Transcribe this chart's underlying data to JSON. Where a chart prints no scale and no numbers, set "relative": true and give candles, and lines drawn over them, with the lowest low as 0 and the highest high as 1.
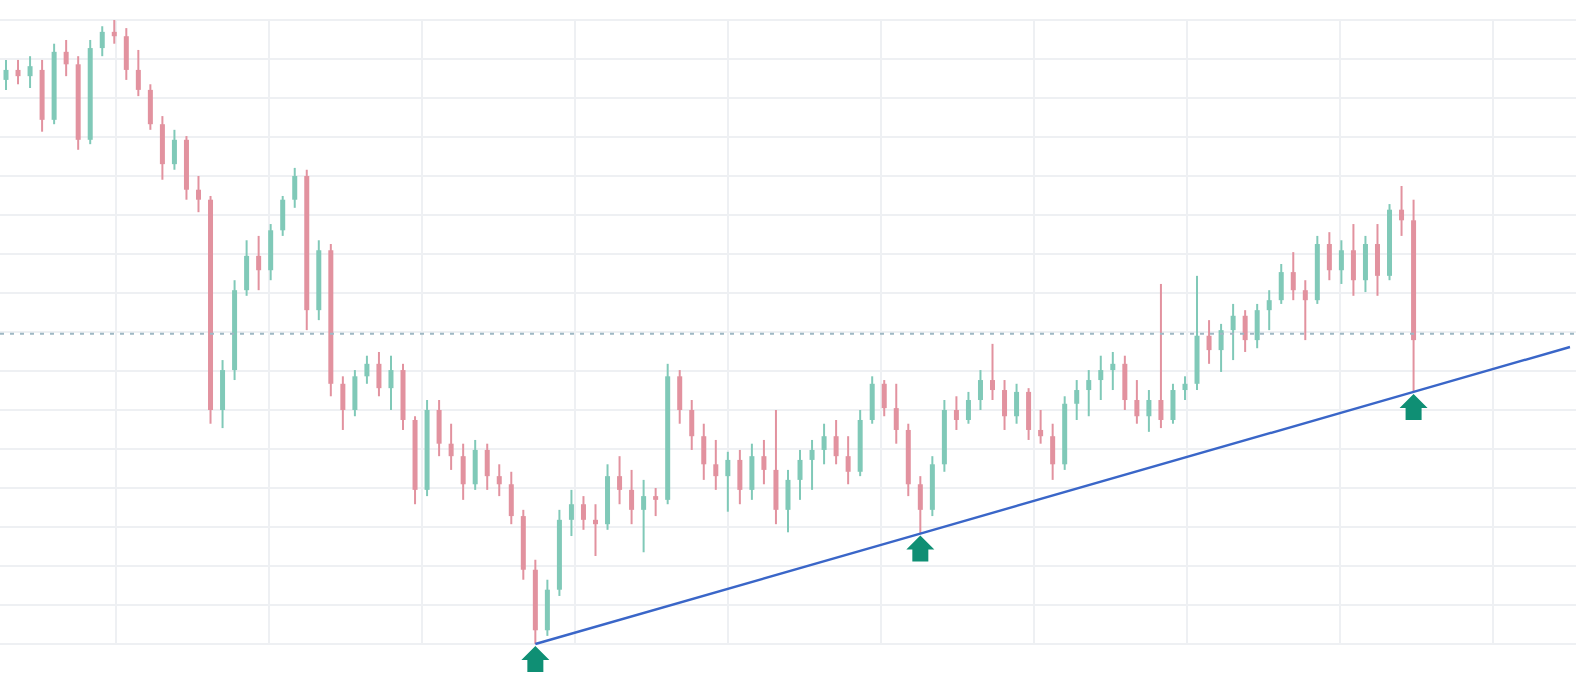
{
  "chart_data": {
    "type": "candlestick",
    "relative": true,
    "grid": true,
    "categories": [
      null,
      null,
      null,
      null,
      null,
      null,
      null,
      null,
      null,
      null,
      null,
      null,
      null,
      null,
      null,
      null,
      null,
      null,
      null,
      null,
      null,
      null,
      null,
      null,
      null,
      null,
      null,
      null,
      null,
      null,
      null,
      null,
      null,
      null,
      null,
      null,
      null,
      null,
      null,
      null,
      null,
      null,
      null,
      null,
      null,
      null,
      null,
      null,
      null,
      null,
      null,
      null,
      null,
      null,
      null,
      null,
      null,
      null,
      null,
      null,
      null,
      null,
      null,
      null,
      null,
      null,
      null,
      null,
      null,
      null,
      null,
      null,
      null,
      null,
      null,
      null,
      null,
      null,
      null,
      null,
      null,
      null,
      null,
      null,
      null,
      null,
      null,
      null,
      null,
      null,
      null,
      null,
      null,
      null,
      null,
      null,
      null,
      null,
      null,
      null,
      null,
      null,
      null,
      null,
      null,
      null,
      null,
      null,
      null,
      null,
      null,
      null,
      null,
      null,
      null,
      null,
      null,
      null,
      null,
      null,
      null,
      null,
      null,
      null,
      null,
      null,
      null,
      null,
      null,
      null,
      null
    ],
    "colors": [
      "#80c9b8",
      "#e2929f",
      "#80c9b8",
      "#e2929f",
      "#80c9b8",
      "#e2929f",
      "#e2929f",
      "#80c9b8",
      "#80c9b8",
      "#e2929f",
      "#e2929f",
      "#e2929f",
      "#e2929f",
      "#e2929f",
      "#80c9b8",
      "#e2929f",
      "#e2929f",
      "#e2929f",
      "#80c9b8",
      "#80c9b8",
      "#80c9b8",
      "#e2929f",
      "#80c9b8",
      "#80c9b8",
      "#80c9b8",
      "#e2929f",
      "#80c9b8",
      "#e2929f",
      "#e2929f",
      "#80c9b8",
      "#80c9b8",
      "#e2929f",
      "#80c9b8",
      "#e2929f",
      "#e2929f",
      "#80c9b8",
      "#e2929f",
      "#e2929f",
      "#e2929f",
      "#80c9b8",
      "#e2929f",
      "#e2929f",
      "#e2929f",
      "#e2929f",
      "#e2929f",
      "#80c9b8",
      "#80c9b8",
      "#80c9b8",
      "#e2929f",
      "#e2929f",
      "#80c9b8",
      "#e2929f",
      "#e2929f",
      "#80c9b8",
      "#e2929f",
      "#80c9b8",
      "#e2929f",
      "#e2929f",
      "#e2929f",
      "#e2929f",
      "#80c9b8",
      "#e2929f",
      "#80c9b8",
      "#e2929f",
      "#e2929f",
      "#80c9b8",
      "#80c9b8",
      "#80c9b8",
      "#80c9b8",
      "#e2929f",
      "#e2929f",
      "#80c9b8",
      "#80c9b8",
      "#e2929f",
      "#e2929f",
      "#e2929f",
      "#e2929f",
      "#80c9b8",
      "#80c9b8",
      "#e2929f",
      "#80c9b8",
      "#80c9b8",
      "#e2929f",
      "#e2929f",
      "#80c9b8",
      "#e2929f",
      "#e2929f",
      "#e2929f",
      "#80c9b8",
      "#80c9b8",
      "#80c9b8",
      "#80c9b8",
      "#80c9b8",
      "#e2929f",
      "#e2929f",
      "#80c9b8",
      "#e2929f",
      "#80c9b8",
      "#80c9b8",
      "#80c9b8",
      "#e2929f",
      "#80c9b8",
      "#80c9b8",
      "#e2929f",
      "#80c9b8",
      "#80c9b8",
      "#80c9b8",
      "#e2929f",
      "#e2929f",
      "#80c9b8",
      "#e2929f",
      "#80c9b8",
      "#e2929f",
      "#80c9b8",
      "#e2929f",
      "#80c9b8",
      "#e2929f",
      "#e2929f",
      null,
      null,
      null,
      null,
      null,
      null,
      null,
      null,
      null,
      null,
      null,
      null,
      null
    ],
    "ohlc": [
      [
        0.904,
        0.936,
        0.888,
        0.92
      ],
      [
        0.92,
        0.936,
        0.897,
        0.91
      ],
      [
        0.91,
        0.942,
        0.891,
        0.926
      ],
      [
        0.92,
        0.936,
        0.821,
        0.84
      ],
      [
        0.84,
        0.962,
        0.833,
        0.949
      ],
      [
        0.949,
        0.968,
        0.91,
        0.929
      ],
      [
        0.929,
        0.942,
        0.792,
        0.808
      ],
      [
        0.808,
        0.968,
        0.801,
        0.955
      ],
      [
        0.955,
        0.99,
        0.942,
        0.981
      ],
      [
        0.981,
        1,
        0.962,
        0.974
      ],
      [
        0.974,
        0.987,
        0.904,
        0.92
      ],
      [
        0.92,
        0.952,
        0.878,
        0.888
      ],
      [
        0.888,
        0.897,
        0.824,
        0.833
      ],
      [
        0.833,
        0.846,
        0.744,
        0.769
      ],
      [
        0.769,
        0.824,
        0.76,
        0.808
      ],
      [
        0.808,
        0.814,
        0.712,
        0.728
      ],
      [
        0.728,
        0.75,
        0.692,
        0.712
      ],
      [
        0.712,
        0.718,
        0.353,
        0.375
      ],
      [
        0.375,
        0.455,
        0.346,
        0.439
      ],
      [
        0.439,
        0.583,
        0.423,
        0.567
      ],
      [
        0.567,
        0.647,
        0.558,
        0.622
      ],
      [
        0.622,
        0.654,
        0.567,
        0.599
      ],
      [
        0.599,
        0.673,
        0.583,
        0.663
      ],
      [
        0.663,
        0.718,
        0.654,
        0.712
      ],
      [
        0.712,
        0.763,
        0.699,
        0.75
      ],
      [
        0.75,
        0.76,
        0.503,
        0.535
      ],
      [
        0.535,
        0.647,
        0.519,
        0.631
      ],
      [
        0.631,
        0.641,
        0.397,
        0.417
      ],
      [
        0.417,
        0.429,
        0.343,
        0.375
      ],
      [
        0.375,
        0.439,
        0.365,
        0.429
      ],
      [
        0.429,
        0.462,
        0.417,
        0.449
      ],
      [
        0.449,
        0.468,
        0.397,
        0.41
      ],
      [
        0.41,
        0.462,
        0.375,
        0.439
      ],
      [
        0.439,
        0.449,
        0.343,
        0.359
      ],
      [
        0.359,
        0.365,
        0.224,
        0.247
      ],
      [
        0.247,
        0.391,
        0.237,
        0.375
      ],
      [
        0.375,
        0.391,
        0.301,
        0.321
      ],
      [
        0.321,
        0.353,
        0.279,
        0.301
      ],
      [
        0.301,
        0.321,
        0.231,
        0.256
      ],
      [
        0.256,
        0.327,
        0.247,
        0.311
      ],
      [
        0.311,
        0.321,
        0.247,
        0.269
      ],
      [
        0.269,
        0.288,
        0.237,
        0.256
      ],
      [
        0.256,
        0.276,
        0.192,
        0.205
      ],
      [
        0.205,
        0.215,
        0.103,
        0.119
      ],
      [
        0.119,
        0.135,
        0,
        0.022
      ],
      [
        0.022,
        0.103,
        0.013,
        0.087
      ],
      [
        0.087,
        0.215,
        0.077,
        0.199
      ],
      [
        0.199,
        0.247,
        0.173,
        0.224
      ],
      [
        0.224,
        0.237,
        0.183,
        0.199
      ],
      [
        0.199,
        0.224,
        0.141,
        0.192
      ],
      [
        0.192,
        0.288,
        0.183,
        0.269
      ],
      [
        0.269,
        0.301,
        0.224,
        0.247
      ],
      [
        0.247,
        0.279,
        0.192,
        0.215
      ],
      [
        0.215,
        0.263,
        0.147,
        0.237
      ],
      [
        0.237,
        0.25,
        0.205,
        0.231
      ],
      [
        0.231,
        0.449,
        0.224,
        0.429
      ],
      [
        0.429,
        0.439,
        0.353,
        0.375
      ],
      [
        0.375,
        0.391,
        0.311,
        0.333
      ],
      [
        0.333,
        0.353,
        0.263,
        0.288
      ],
      [
        0.288,
        0.327,
        0.247,
        0.269
      ],
      [
        0.269,
        0.308,
        0.212,
        0.295
      ],
      [
        0.295,
        0.311,
        0.224,
        0.247
      ],
      [
        0.247,
        0.321,
        0.231,
        0.301
      ],
      [
        0.301,
        0.327,
        0.256,
        0.279
      ],
      [
        0.279,
        0.375,
        0.192,
        0.215
      ],
      [
        0.215,
        0.279,
        0.179,
        0.263
      ],
      [
        0.263,
        0.311,
        0.231,
        0.295
      ],
      [
        0.295,
        0.327,
        0.247,
        0.311
      ],
      [
        0.311,
        0.353,
        0.288,
        0.333
      ],
      [
        0.333,
        0.359,
        0.288,
        0.301
      ],
      [
        0.301,
        0.333,
        0.256,
        0.276
      ],
      [
        0.276,
        0.375,
        0.269,
        0.359
      ],
      [
        0.359,
        0.429,
        0.353,
        0.417
      ],
      [
        0.417,
        0.423,
        0.365,
        0.378
      ],
      [
        0.378,
        0.417,
        0.321,
        0.343
      ],
      [
        0.343,
        0.353,
        0.237,
        0.256
      ],
      [
        0.256,
        0.269,
        0.177,
        0.215
      ],
      [
        0.215,
        0.301,
        0.205,
        0.288
      ],
      [
        0.288,
        0.391,
        0.276,
        0.375
      ],
      [
        0.375,
        0.397,
        0.343,
        0.359
      ],
      [
        0.359,
        0.404,
        0.353,
        0.391
      ],
      [
        0.391,
        0.439,
        0.375,
        0.423
      ],
      [
        0.423,
        0.481,
        0.391,
        0.407
      ],
      [
        0.407,
        0.423,
        0.343,
        0.365
      ],
      [
        0.365,
        0.417,
        0.353,
        0.404
      ],
      [
        0.404,
        0.41,
        0.327,
        0.343
      ],
      [
        0.343,
        0.375,
        0.321,
        0.333
      ],
      [
        0.333,
        0.353,
        0.263,
        0.288
      ],
      [
        0.288,
        0.397,
        0.279,
        0.385
      ],
      [
        0.385,
        0.423,
        0.359,
        0.407
      ],
      [
        0.407,
        0.439,
        0.365,
        0.423
      ],
      [
        0.423,
        0.462,
        0.391,
        0.439
      ],
      [
        0.439,
        0.468,
        0.407,
        0.449
      ],
      [
        0.449,
        0.462,
        0.375,
        0.391
      ],
      [
        0.391,
        0.423,
        0.353,
        0.365
      ],
      [
        0.365,
        0.407,
        0.34,
        0.391
      ],
      [
        0.391,
        0.577,
        0.346,
        0.359
      ],
      [
        0.359,
        0.417,
        0.353,
        0.407
      ],
      [
        0.407,
        0.429,
        0.391,
        0.417
      ],
      [
        0.417,
        0.59,
        0.407,
        0.494
      ],
      [
        0.494,
        0.519,
        0.449,
        0.471
      ],
      [
        0.471,
        0.513,
        0.436,
        0.503
      ],
      [
        0.503,
        0.545,
        0.455,
        0.526
      ],
      [
        0.526,
        0.535,
        0.468,
        0.487
      ],
      [
        0.487,
        0.545,
        0.474,
        0.535
      ],
      [
        0.535,
        0.567,
        0.503,
        0.551
      ],
      [
        0.551,
        0.609,
        0.545,
        0.596
      ],
      [
        0.596,
        0.628,
        0.551,
        0.567
      ],
      [
        0.567,
        0.583,
        0.487,
        0.551
      ],
      [
        0.551,
        0.654,
        0.545,
        0.641
      ],
      [
        0.641,
        0.66,
        0.583,
        0.599
      ],
      [
        0.599,
        0.647,
        0.577,
        0.631
      ],
      [
        0.631,
        0.673,
        0.558,
        0.583
      ],
      [
        0.583,
        0.654,
        0.564,
        0.641
      ],
      [
        0.641,
        0.673,
        0.558,
        0.59
      ],
      [
        0.59,
        0.705,
        0.583,
        0.696
      ],
      [
        0.696,
        0.734,
        0.654,
        0.679
      ],
      [
        0.679,
        0.712,
        0.404,
        0.487
      ],
      null,
      null,
      null,
      null,
      null,
      null,
      null,
      null,
      null,
      null,
      null,
      null,
      null
    ],
    "series": [
      {
        "type": "line",
        "color": "#3a66c8",
        "values": [
          null,
          null,
          null,
          null,
          null,
          null,
          null,
          null,
          null,
          null,
          null,
          null,
          null,
          null,
          null,
          null,
          null,
          null,
          null,
          null,
          null,
          null,
          null,
          null,
          null,
          null,
          null,
          null,
          null,
          null,
          null,
          null,
          null,
          null,
          null,
          null,
          null,
          null,
          null,
          null,
          null,
          null,
          null,
          null,
          0,
          null,
          null,
          null,
          null,
          null,
          null,
          null,
          null,
          null,
          null,
          null,
          null,
          null,
          null,
          null,
          null,
          null,
          null,
          null,
          null,
          null,
          null,
          null,
          null,
          null,
          null,
          null,
          null,
          null,
          null,
          null,
          0.177,
          null,
          null,
          null,
          null,
          null,
          null,
          null,
          null,
          null,
          null,
          null,
          null,
          null,
          null,
          null,
          null,
          null,
          null,
          null,
          null,
          null,
          null,
          null,
          null,
          null,
          null,
          null,
          null,
          null,
          null,
          null,
          null,
          null,
          null,
          null,
          null,
          null,
          null,
          null,
          null,
          0.404,
          null,
          null,
          null,
          null,
          null,
          null,
          null,
          null,
          null,
          null,
          null,
          null,
          0.476
        ]
      }
    ],
    "ref_lines": [
      {
        "axis": "y",
        "value": 0.497,
        "color": "#9fb8c4",
        "line_style": "dotted"
      }
    ]
  }
}
